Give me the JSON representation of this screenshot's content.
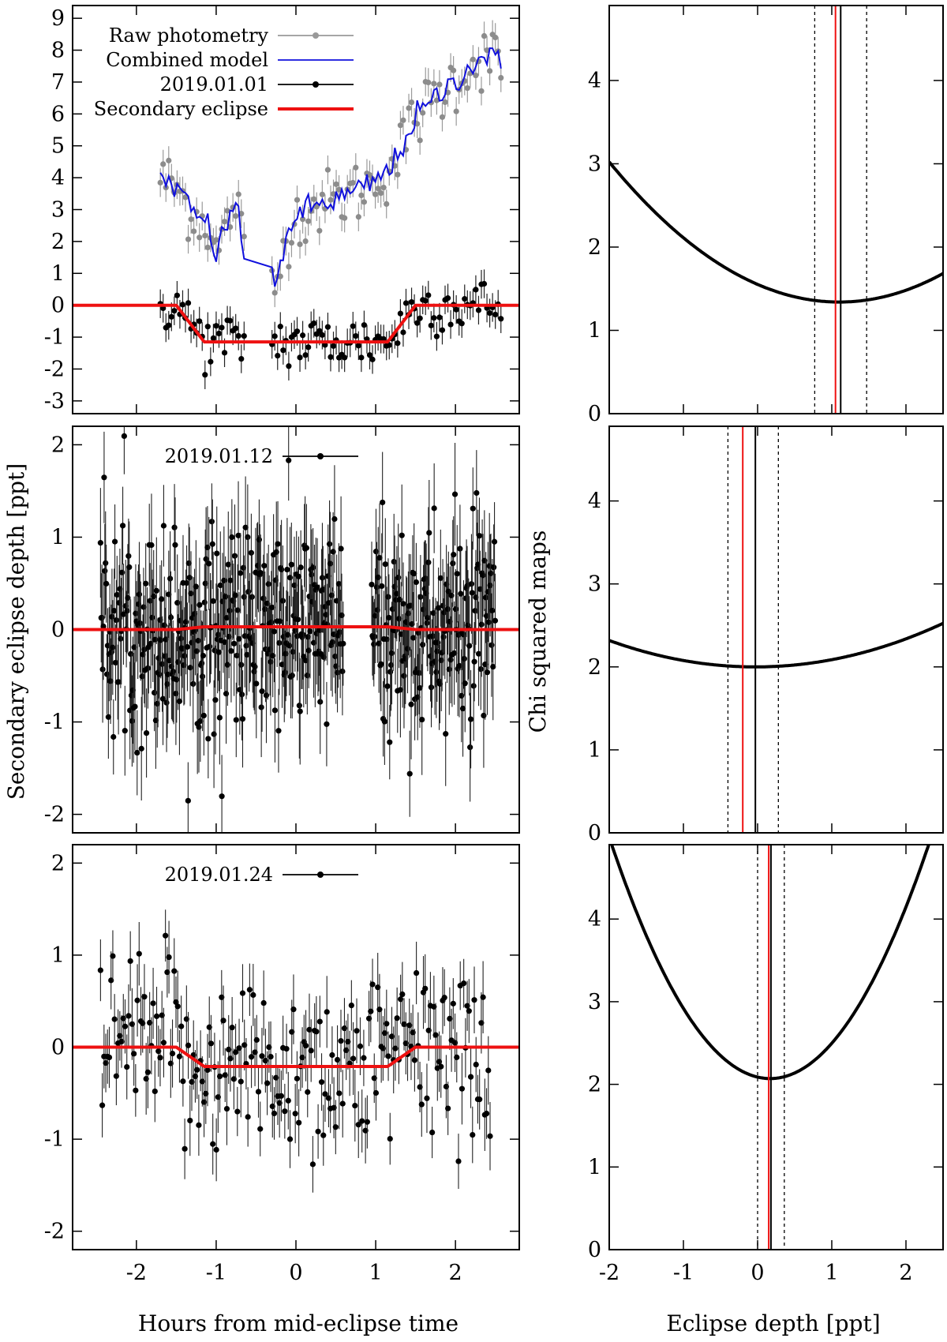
{
  "figure": {
    "xlabel_left": "Hours from mid-eclipse time",
    "ylabel_left": "Secondary eclipse depth [ppt]",
    "xlabel_right": "Eclipse depth [ppt]",
    "ylabel_right": "Chi squared maps"
  },
  "chart_data": [
    {
      "id": "lc1",
      "type": "scatter",
      "xlim": [
        -2.8,
        2.8
      ],
      "ylim": [
        -3.4,
        9.4
      ],
      "xticks": [
        -2,
        -1,
        0,
        1,
        2
      ],
      "yticks": [
        -3,
        -2,
        -1,
        0,
        1,
        2,
        3,
        4,
        5,
        6,
        7,
        8,
        9
      ],
      "legend_position": "top-left",
      "legend": [
        {
          "label": "Raw photometry",
          "color": "#999999",
          "style": "points-line"
        },
        {
          "label": "Combined model",
          "color": "#1010dd",
          "style": "line"
        },
        {
          "label": "2019.01.01",
          "color": "#000000",
          "style": "points-line"
        },
        {
          "label": "Secondary eclipse",
          "color": "#ee1111",
          "style": "thick-line"
        }
      ],
      "eclipse_depth_ppt": 1.15,
      "eclipse_contacts_h": [
        -1.5,
        -1.15,
        1.15,
        1.5
      ],
      "raw_photometry_trend": [
        [
          -1.7,
          4.0
        ],
        [
          -1.5,
          3.7
        ],
        [
          -1.3,
          2.9
        ],
        [
          -1.1,
          2.5
        ],
        [
          -1.0,
          1.6
        ],
        [
          -0.85,
          2.6
        ],
        [
          -0.75,
          3.4
        ],
        [
          -0.65,
          1.6
        ],
        [
          -0.25,
          0.5
        ],
        [
          -0.1,
          2.5
        ],
        [
          0.2,
          3.1
        ],
        [
          0.5,
          3.3
        ],
        [
          0.8,
          3.6
        ],
        [
          1.0,
          3.9
        ],
        [
          1.2,
          4.3
        ],
        [
          1.5,
          5.9
        ],
        [
          1.8,
          6.6
        ],
        [
          2.1,
          7.3
        ],
        [
          2.4,
          7.9
        ],
        [
          2.6,
          7.4
        ]
      ],
      "observing_segments_h": [
        [
          -1.7,
          -0.62
        ],
        [
          -0.3,
          2.6
        ]
      ],
      "point_spacing_h": 0.035,
      "raw_scatter_ppt": 0.5,
      "residual_scatter_ppt": 0.45,
      "error_bar_ppt": 0.45
    },
    {
      "id": "lc2",
      "type": "scatter",
      "xlim": [
        -2.8,
        2.8
      ],
      "ylim": [
        -2.2,
        2.2
      ],
      "xticks": [
        -2,
        -1,
        0,
        1,
        2
      ],
      "yticks": [
        -2,
        -1,
        0,
        1,
        2
      ],
      "legend_position": "top-center",
      "legend": [
        {
          "label": "2019.01.12",
          "color": "#000000",
          "style": "points-line"
        }
      ],
      "eclipse_depth_ppt": -0.03,
      "eclipse_contacts_h": [
        -1.5,
        -1.15,
        1.15,
        1.5
      ],
      "observing_segments_h": [
        [
          -2.45,
          0.6
        ],
        [
          0.95,
          2.5
        ]
      ],
      "point_spacing_h": 0.009,
      "scatter_ppt": 0.55,
      "error_bar_ppt": 0.5
    },
    {
      "id": "lc3",
      "type": "scatter",
      "xlim": [
        -2.8,
        2.8
      ],
      "ylim": [
        -2.2,
        2.2
      ],
      "xticks": [
        -2,
        -1,
        0,
        1,
        2
      ],
      "yticks": [
        -2,
        -1,
        0,
        1,
        2
      ],
      "legend_position": "top-center",
      "legend": [
        {
          "label": "2019.01.24",
          "color": "#000000",
          "style": "points-line"
        }
      ],
      "eclipse_depth_ppt": 0.21,
      "eclipse_contacts_h": [
        -1.5,
        -1.15,
        1.15,
        1.5
      ],
      "observing_segments_h": [
        [
          -2.45,
          2.45
        ]
      ],
      "point_spacing_h": 0.022,
      "scatter_ppt": 0.5,
      "error_bar_ppt": 0.33
    },
    {
      "id": "chi1",
      "type": "line",
      "xlim": [
        -2,
        2.5
      ],
      "ylim": [
        0,
        4.9
      ],
      "xticks": [
        -2,
        -1,
        0,
        1,
        2
      ],
      "yticks": [
        0,
        1,
        2,
        3,
        4
      ],
      "parabola": {
        "vertex_x": 1.1,
        "vertex_y": 1.34,
        "curvature": 0.175
      },
      "best_fit": 1.12,
      "confidence": [
        0.77,
        1.47
      ],
      "red_line": 1.05
    },
    {
      "id": "chi2",
      "type": "line",
      "xlim": [
        -2,
        2.5
      ],
      "ylim": [
        0,
        4.9
      ],
      "xticks": [
        -2,
        -1,
        0,
        1,
        2
      ],
      "yticks": [
        0,
        1,
        2,
        3,
        4
      ],
      "parabola": {
        "vertex_x": -0.03,
        "vertex_y": 2.0,
        "curvature": 0.082
      },
      "best_fit": -0.03,
      "confidence": [
        -0.4,
        0.28
      ],
      "red_line": -0.2
    },
    {
      "id": "chi3",
      "type": "line",
      "xlim": [
        -2,
        2.5
      ],
      "ylim": [
        0,
        4.9
      ],
      "xticks": [
        -2,
        -1,
        0,
        1,
        2
      ],
      "yticks": [
        0,
        1,
        2,
        3,
        4
      ],
      "parabola": {
        "vertex_x": 0.17,
        "vertex_y": 2.07,
        "curvature": 0.62
      },
      "best_fit": 0.18,
      "confidence": [
        0.0,
        0.36
      ],
      "red_line": 0.15
    }
  ]
}
